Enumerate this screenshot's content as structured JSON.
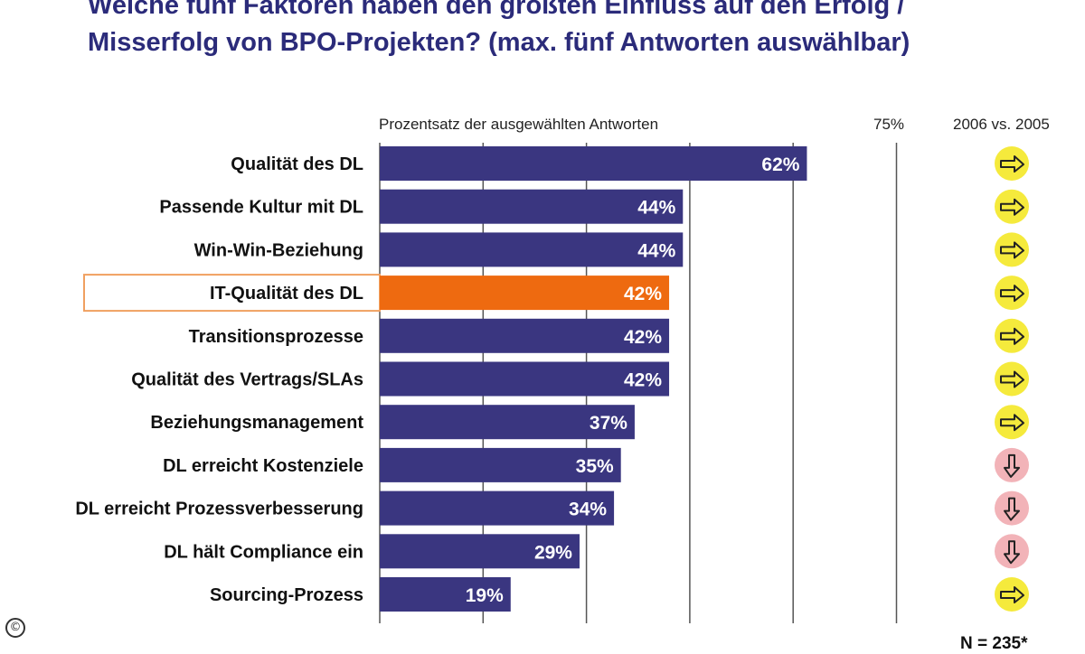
{
  "chart_data": {
    "type": "bar",
    "orientation": "horizontal",
    "title": "Welche fünf Faktoren haben den größten Einfluss auf den Erfolg / Misserfolg von BPO-Projekten? (max. fünf Antworten auswählbar)",
    "title_lines": [
      "Welche fünf Faktoren haben den größten Einfluss auf den Erfolg /",
      "Misserfolg von BPO-Projekten? (max. fünf Antworten auswählbar)"
    ],
    "xlabel": "Prozentsatz der ausgewählten Antworten",
    "x_tick_label": "75%",
    "x_tick_value": 75,
    "xlim": [
      0,
      75
    ],
    "grid_values": [
      15,
      30,
      45,
      60,
      75
    ],
    "trend_header": "2006 vs. 2005",
    "categories": [
      "Qualität des DL",
      "Passende Kultur mit DL",
      "Win-Win-Beziehung",
      "IT-Qualität des DL",
      "Transitionsprozesse",
      "Qualität des Vertrags/SLAs",
      "Beziehungsmanagement",
      "DL erreicht Kostenziele",
      "DL erreicht Prozessverbesserung",
      "DL hält Compliance ein",
      "Sourcing-Prozess"
    ],
    "values": [
      62,
      44,
      44,
      42,
      42,
      42,
      37,
      35,
      34,
      29,
      19
    ],
    "value_labels": [
      "62%",
      "44%",
      "44%",
      "42%",
      "42%",
      "42%",
      "37%",
      "35%",
      "34%",
      "29%",
      "19%"
    ],
    "highlight": "IT-Qualität des DL",
    "trend": [
      "sideways",
      "sideways",
      "sideways",
      "sideways",
      "sideways",
      "sideways",
      "sideways",
      "down",
      "down",
      "down",
      "sideways"
    ],
    "footnote": "N = 235*",
    "grid": true,
    "legend": "none"
  },
  "colors": {
    "bar": "#3a3680",
    "highlight_bar": "#ee6a10",
    "highlight_box": "#f0a060",
    "grid": "#555555",
    "trend_sideways": "#f5ea3c",
    "trend_down": "#f2b3b8",
    "title": "#2b2b7a"
  },
  "copyright_symbol": "©"
}
